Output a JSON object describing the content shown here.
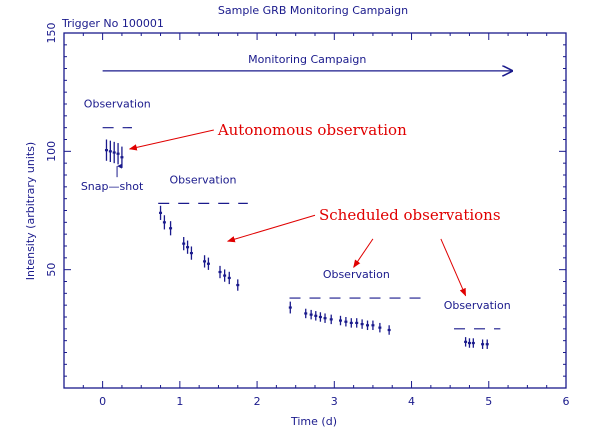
{
  "chart_data": {
    "type": "scatter",
    "title": "Sample GRB Monitoring Campaign",
    "subtitle": "Trigger No 100001",
    "xlabel": "Time (d)",
    "ylabel": "Intensity (arbitrary units)",
    "xlim": [
      -0.5,
      6
    ],
    "ylim": [
      0,
      150
    ],
    "xticks": [
      0,
      1,
      2,
      3,
      4,
      5,
      6
    ],
    "yticks": [
      50,
      100,
      150
    ],
    "grid": false,
    "colors": {
      "axes": "#1a1a8c",
      "data": "#1a1a8c",
      "annotation": "#e00000"
    },
    "series": [
      {
        "x": [
          0.05,
          0.1,
          0.15,
          0.2,
          0.25
        ],
        "y": [
          100.5,
          100.0,
          99.5,
          99.0,
          97.5
        ],
        "yerr": [
          4.5,
          4.5,
          4.5,
          4.5,
          4.5
        ]
      },
      {
        "x": [
          0.75,
          0.8,
          0.88,
          1.05,
          1.1,
          1.15,
          1.32,
          1.37,
          1.52,
          1.58,
          1.64,
          1.75
        ],
        "y": [
          74,
          70,
          67.5,
          61,
          59.5,
          57,
          53.5,
          52.5,
          49,
          47.5,
          46.5,
          43.5
        ],
        "yerr": [
          3,
          3,
          3,
          2.8,
          2.8,
          2.8,
          2.6,
          2.6,
          2.6,
          2.6,
          2.6,
          2.4
        ]
      },
      {
        "x": [
          2.43,
          2.63,
          2.7,
          2.76,
          2.82,
          2.88,
          2.96,
          3.08,
          3.15,
          3.22,
          3.29,
          3.36,
          3.43,
          3.5,
          3.59,
          3.71
        ],
        "y": [
          34,
          31.5,
          31,
          30.5,
          30,
          29.5,
          29,
          28.5,
          28,
          27.5,
          27.5,
          27,
          26.5,
          26.5,
          25.5,
          24.5
        ],
        "yerr": [
          2.5,
          2,
          2,
          2,
          2,
          2,
          2,
          2,
          2,
          2,
          2,
          2,
          2,
          2,
          2,
          2
        ]
      },
      {
        "x": [
          4.7,
          4.75,
          4.8,
          4.92,
          4.98
        ],
        "y": [
          19.5,
          19,
          19,
          18.5,
          18.5
        ],
        "yerr": [
          2,
          2,
          2,
          2,
          2
        ]
      }
    ],
    "observation_windows": [
      {
        "label": "Observation",
        "x_range": [
          0.0,
          0.38
        ],
        "y": 110
      },
      {
        "label": "Observation",
        "x_range": [
          0.72,
          1.88
        ],
        "y": 78
      },
      {
        "label": "Observation",
        "x_range": [
          2.42,
          4.15
        ],
        "y": 38
      },
      {
        "label": "Observation",
        "x_range": [
          4.55,
          5.15
        ],
        "y": 25
      }
    ],
    "campaign": {
      "label": "Monitoring Campaign",
      "x_range": [
        0.0,
        5.3
      ],
      "y": 134
    },
    "annotations": [
      {
        "text": "Autonomous observation",
        "anchor": [
          1.44,
          109
        ],
        "arrow_to": [
          0.35,
          101
        ]
      },
      {
        "text": "Scheduled observations",
        "anchor": [
          2.75,
          73
        ],
        "arrow_to": [
          1.62,
          62
        ]
      },
      {
        "text": "",
        "anchor": [
          3.5,
          63
        ],
        "arrow_to": [
          3.25,
          51
        ]
      },
      {
        "text": "",
        "anchor": [
          4.38,
          63
        ],
        "arrow_to": [
          4.7,
          39
        ]
      }
    ],
    "snapshot_label": "Snap—shot",
    "snapshot_at": [
      0.2,
      95
    ]
  }
}
